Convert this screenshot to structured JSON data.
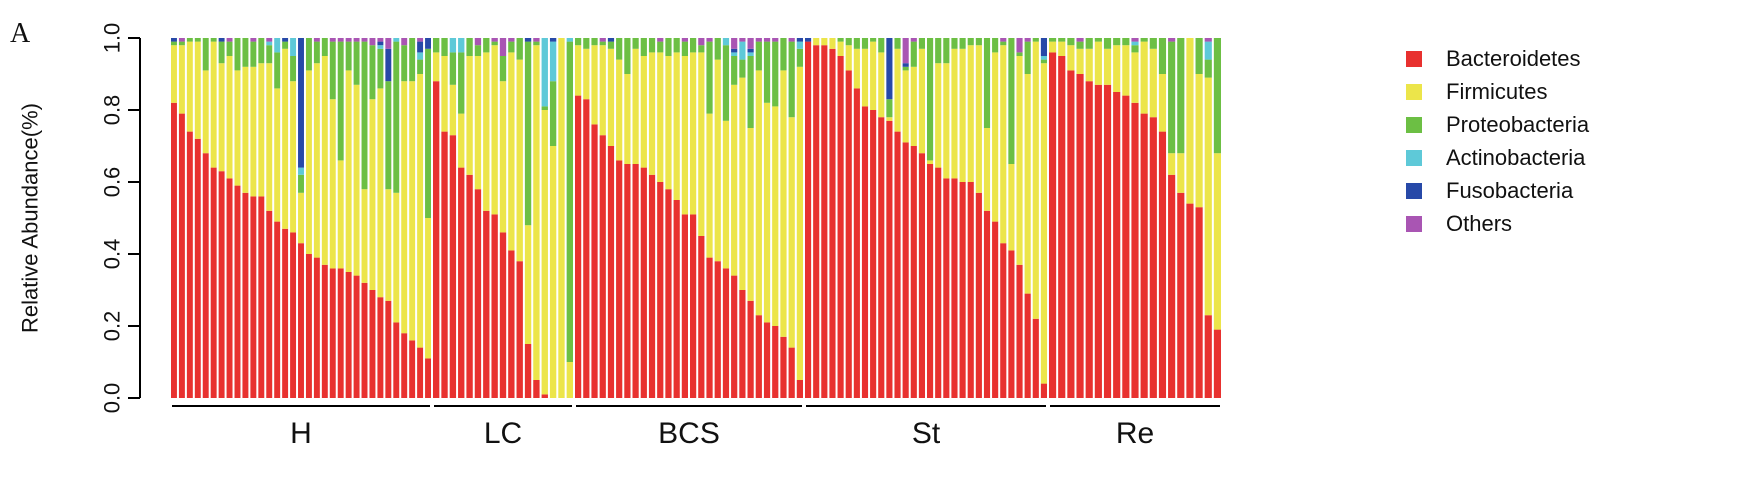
{
  "panel_label": "A",
  "chart_data": {
    "type": "bar",
    "stacked": true,
    "ylabel": "Relative Abundance(%)",
    "ylim": [
      0,
      1.0
    ],
    "yticks": [
      "0.0",
      "0.2",
      "0.4",
      "0.6",
      "0.8",
      "1.0"
    ],
    "grid": false,
    "legend_position": "right",
    "series": [
      {
        "name": "Bacteroidetes",
        "color": "#e8312f"
      },
      {
        "name": "Firmicutes",
        "color": "#ece54a"
      },
      {
        "name": "Proteobacteria",
        "color": "#6cbf44"
      },
      {
        "name": "Actinobacteria",
        "color": "#5ec9d8"
      },
      {
        "name": "Fusobacteria",
        "color": "#2749a8"
      },
      {
        "name": "Others",
        "color": "#a955b3"
      }
    ],
    "groups": [
      {
        "name": "H",
        "samples": [
          [
            0.82,
            0.16,
            0.01,
            0,
            0.01,
            0
          ],
          [
            0.79,
            0.19,
            0.01,
            0,
            0,
            0.01
          ],
          [
            0.74,
            0.25,
            0.01,
            0,
            0,
            0
          ],
          [
            0.72,
            0.27,
            0.01,
            0,
            0,
            0
          ],
          [
            0.68,
            0.23,
            0.09,
            0,
            0,
            0
          ],
          [
            0.64,
            0.35,
            0.01,
            0,
            0,
            0
          ],
          [
            0.63,
            0.3,
            0.06,
            0,
            0.01,
            0
          ],
          [
            0.61,
            0.34,
            0.04,
            0,
            0,
            0.01
          ],
          [
            0.59,
            0.32,
            0.09,
            0,
            0,
            0
          ],
          [
            0.57,
            0.35,
            0.08,
            0,
            0,
            0
          ],
          [
            0.56,
            0.36,
            0.07,
            0,
            0,
            0.01
          ],
          [
            0.56,
            0.37,
            0.07,
            0,
            0,
            0
          ],
          [
            0.52,
            0.41,
            0.05,
            0.01,
            0,
            0.01
          ],
          [
            0.49,
            0.37,
            0.1,
            0.04,
            0,
            0
          ],
          [
            0.47,
            0.5,
            0.02,
            0,
            0.01,
            0
          ],
          [
            0.46,
            0.42,
            0.07,
            0.05,
            0,
            0
          ],
          [
            0.43,
            0.14,
            0.05,
            0.02,
            0.36,
            0
          ],
          [
            0.4,
            0.51,
            0.09,
            0,
            0,
            0
          ],
          [
            0.39,
            0.54,
            0.06,
            0,
            0,
            0.01
          ],
          [
            0.37,
            0.58,
            0.05,
            0,
            0,
            0
          ],
          [
            0.36,
            0.47,
            0.16,
            0,
            0,
            0.01
          ],
          [
            0.36,
            0.3,
            0.33,
            0,
            0,
            0.01
          ],
          [
            0.35,
            0.56,
            0.08,
            0,
            0,
            0.01
          ],
          [
            0.34,
            0.53,
            0.12,
            0,
            0,
            0.01
          ],
          [
            0.32,
            0.26,
            0.41,
            0,
            0,
            0.01
          ],
          [
            0.3,
            0.53,
            0.15,
            0,
            0,
            0.02
          ],
          [
            0.28,
            0.58,
            0.11,
            0.01,
            0.01,
            0.01
          ],
          [
            0.27,
            0.31,
            0.3,
            0,
            0.09,
            0.03
          ],
          [
            0.21,
            0.36,
            0.42,
            0.01,
            0,
            0
          ],
          [
            0.18,
            0.7,
            0.1,
            0,
            0,
            0.02
          ],
          [
            0.16,
            0.72,
            0.12,
            0,
            0,
            0
          ],
          [
            0.14,
            0.76,
            0.04,
            0.02,
            0.03,
            0.01
          ],
          [
            0.11,
            0.39,
            0.47,
            0,
            0.03,
            0
          ]
        ]
      },
      {
        "name": "LC",
        "samples": [
          [
            0.88,
            0.08,
            0.04,
            0,
            0,
            0
          ],
          [
            0.74,
            0.21,
            0.05,
            0,
            0,
            0
          ],
          [
            0.73,
            0.14,
            0.09,
            0.04,
            0,
            0
          ],
          [
            0.64,
            0.15,
            0.17,
            0.04,
            0,
            0
          ],
          [
            0.62,
            0.33,
            0.05,
            0,
            0,
            0
          ],
          [
            0.58,
            0.37,
            0.03,
            0,
            0,
            0.02
          ],
          [
            0.52,
            0.44,
            0.04,
            0,
            0,
            0
          ],
          [
            0.51,
            0.47,
            0.01,
            0,
            0,
            0.01
          ],
          [
            0.46,
            0.42,
            0.07,
            0,
            0,
            0.05
          ],
          [
            0.41,
            0.55,
            0.03,
            0,
            0,
            0.01
          ],
          [
            0.38,
            0.56,
            0.06,
            0,
            0,
            0
          ],
          [
            0.15,
            0.33,
            0.51,
            0,
            0.01,
            0
          ],
          [
            0.05,
            0.93,
            0.01,
            0,
            0,
            0.01
          ],
          [
            0.01,
            0.79,
            0.01,
            0.19,
            0,
            0
          ],
          [
            0,
            0.7,
            0.18,
            0.11,
            0.01,
            0
          ],
          [
            0,
            1.0,
            0,
            0,
            0,
            0
          ],
          [
            0,
            0.1,
            0.89,
            0.01,
            0,
            0
          ]
        ]
      },
      {
        "name": "BCS",
        "samples": [
          [
            0.84,
            0.14,
            0.02,
            0,
            0,
            0
          ],
          [
            0.83,
            0.14,
            0.03,
            0,
            0,
            0
          ],
          [
            0.76,
            0.22,
            0.02,
            0,
            0,
            0
          ],
          [
            0.73,
            0.25,
            0.01,
            0,
            0,
            0.01
          ],
          [
            0.7,
            0.27,
            0.02,
            0,
            0.01,
            0
          ],
          [
            0.66,
            0.28,
            0.06,
            0,
            0,
            0
          ],
          [
            0.65,
            0.25,
            0.1,
            0,
            0,
            0
          ],
          [
            0.65,
            0.32,
            0.03,
            0,
            0,
            0
          ],
          [
            0.64,
            0.31,
            0.05,
            0,
            0,
            0
          ],
          [
            0.62,
            0.34,
            0.04,
            0,
            0,
            0
          ],
          [
            0.6,
            0.36,
            0.03,
            0,
            0,
            0.01
          ],
          [
            0.58,
            0.37,
            0.05,
            0,
            0,
            0
          ],
          [
            0.55,
            0.41,
            0.04,
            0,
            0,
            0
          ],
          [
            0.51,
            0.44,
            0.04,
            0,
            0,
            0.01
          ],
          [
            0.51,
            0.45,
            0.04,
            0,
            0,
            0
          ],
          [
            0.45,
            0.51,
            0.02,
            0,
            0,
            0.02
          ],
          [
            0.39,
            0.4,
            0.2,
            0,
            0,
            0.01
          ],
          [
            0.38,
            0.56,
            0.06,
            0,
            0,
            0
          ],
          [
            0.36,
            0.41,
            0.21,
            0.02,
            0,
            0
          ],
          [
            0.34,
            0.53,
            0.08,
            0.01,
            0.01,
            0.03
          ],
          [
            0.3,
            0.59,
            0.05,
            0.05,
            0,
            0.01
          ],
          [
            0.27,
            0.48,
            0.2,
            0.01,
            0.01,
            0.03
          ],
          [
            0.23,
            0.68,
            0.08,
            0,
            0,
            0.01
          ],
          [
            0.21,
            0.61,
            0.17,
            0,
            0,
            0.01
          ],
          [
            0.2,
            0.61,
            0.18,
            0,
            0,
            0.01
          ],
          [
            0.17,
            0.74,
            0.09,
            0,
            0,
            0
          ],
          [
            0.14,
            0.64,
            0.21,
            0,
            0,
            0.01
          ],
          [
            0.05,
            0.87,
            0.05,
            0.02,
            0.01,
            0
          ]
        ]
      },
      {
        "name": "St",
        "samples": [
          [
            0.99,
            0,
            0,
            0,
            0.01,
            0
          ],
          [
            0.98,
            0.02,
            0,
            0,
            0,
            0
          ],
          [
            0.98,
            0.02,
            0,
            0,
            0,
            0
          ],
          [
            0.97,
            0.03,
            0,
            0,
            0,
            0
          ],
          [
            0.95,
            0.04,
            0.01,
            0,
            0,
            0
          ],
          [
            0.91,
            0.07,
            0.02,
            0,
            0,
            0
          ],
          [
            0.86,
            0.11,
            0.03,
            0,
            0,
            0
          ],
          [
            0.81,
            0.16,
            0.03,
            0,
            0,
            0
          ],
          [
            0.8,
            0.19,
            0.01,
            0,
            0,
            0
          ],
          [
            0.78,
            0.18,
            0.04,
            0,
            0,
            0
          ],
          [
            0.77,
            0.01,
            0.05,
            0,
            0.17,
            0
          ],
          [
            0.74,
            0.23,
            0.03,
            0,
            0,
            0
          ],
          [
            0.71,
            0.2,
            0.01,
            0,
            0.01,
            0.07
          ],
          [
            0.7,
            0.22,
            0.07,
            0,
            0,
            0.01
          ],
          [
            0.68,
            0.29,
            0.03,
            0,
            0,
            0
          ],
          [
            0.65,
            0.01,
            0.34,
            0,
            0,
            0
          ],
          [
            0.64,
            0.29,
            0.07,
            0,
            0,
            0
          ],
          [
            0.61,
            0.32,
            0.07,
            0,
            0,
            0
          ],
          [
            0.61,
            0.36,
            0.03,
            0,
            0,
            0
          ],
          [
            0.6,
            0.37,
            0.03,
            0,
            0,
            0
          ],
          [
            0.6,
            0.38,
            0.02,
            0,
            0,
            0
          ],
          [
            0.57,
            0.41,
            0.02,
            0,
            0,
            0
          ],
          [
            0.52,
            0.23,
            0.25,
            0,
            0,
            0
          ],
          [
            0.49,
            0.47,
            0.04,
            0,
            0,
            0
          ],
          [
            0.43,
            0.55,
            0.01,
            0,
            0,
            0.01
          ],
          [
            0.41,
            0.24,
            0.35,
            0,
            0,
            0
          ],
          [
            0.37,
            0.58,
            0.01,
            0,
            0,
            0.04
          ],
          [
            0.29,
            0.61,
            0.09,
            0,
            0,
            0.01
          ],
          [
            0.22,
            0.77,
            0.01,
            0,
            0,
            0
          ],
          [
            0.04,
            0.89,
            0.01,
            0.01,
            0.05,
            0
          ]
        ]
      },
      {
        "name": "Re",
        "samples": [
          [
            0.96,
            0.03,
            0.01,
            0,
            0,
            0
          ],
          [
            0.95,
            0.04,
            0.01,
            0,
            0,
            0
          ],
          [
            0.91,
            0.07,
            0.02,
            0,
            0,
            0
          ],
          [
            0.9,
            0.07,
            0.02,
            0,
            0,
            0.01
          ],
          [
            0.88,
            0.09,
            0.03,
            0,
            0,
            0
          ],
          [
            0.87,
            0.12,
            0.01,
            0,
            0,
            0
          ],
          [
            0.87,
            0.1,
            0.03,
            0,
            0,
            0
          ],
          [
            0.85,
            0.13,
            0.02,
            0,
            0,
            0
          ],
          [
            0.84,
            0.14,
            0.02,
            0,
            0,
            0
          ],
          [
            0.82,
            0.14,
            0.02,
            0.01,
            0,
            0.01
          ],
          [
            0.79,
            0.2,
            0.01,
            0,
            0,
            0
          ],
          [
            0.78,
            0.19,
            0.03,
            0,
            0,
            0
          ],
          [
            0.74,
            0.16,
            0.1,
            0,
            0,
            0
          ],
          [
            0.62,
            0.06,
            0.31,
            0,
            0,
            0.01
          ],
          [
            0.57,
            0.11,
            0.32,
            0,
            0,
            0
          ],
          [
            0.54,
            0.46,
            0,
            0,
            0,
            0
          ],
          [
            0.53,
            0.37,
            0.1,
            0,
            0,
            0
          ],
          [
            0.23,
            0.66,
            0.05,
            0.05,
            0,
            0.01
          ],
          [
            0.19,
            0.49,
            0.32,
            0,
            0,
            0
          ]
        ]
      }
    ]
  }
}
